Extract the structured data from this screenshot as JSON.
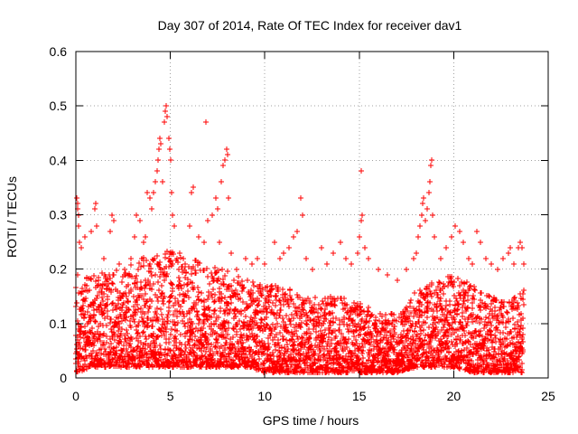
{
  "chart_data": {
    "type": "scatter",
    "title": "Day 307 of 2014, Rate Of TEC Index for receiver dav1",
    "xlabel": "GPS time / hours",
    "ylabel": "ROTI / TECUs",
    "xlim": [
      0,
      25
    ],
    "ylim": [
      0,
      0.6
    ],
    "xticks": [
      0,
      5,
      10,
      15,
      20,
      25
    ],
    "xtick_labels": [
      "0",
      "5",
      "10",
      "15",
      "20",
      "25"
    ],
    "yticks": [
      0,
      0.1,
      0.2,
      0.3,
      0.4,
      0.5,
      0.6
    ],
    "ytick_labels": [
      "0",
      "0.1",
      "0.2",
      "0.3",
      "0.4",
      "0.5",
      "0.6"
    ],
    "grid": true,
    "marker": "+",
    "color": "#ff0000",
    "series": [
      {
        "name": "ROTI",
        "points": [
          [
            0.05,
            0.33
          ],
          [
            0.08,
            0.32
          ],
          [
            0.1,
            0.31
          ],
          [
            0.12,
            0.3
          ],
          [
            0.15,
            0.28
          ],
          [
            0.2,
            0.25
          ],
          [
            0.3,
            0.24
          ],
          [
            0.5,
            0.26
          ],
          [
            0.8,
            0.27
          ],
          [
            1.0,
            0.31
          ],
          [
            1.05,
            0.32
          ],
          [
            1.1,
            0.28
          ],
          [
            1.5,
            0.22
          ],
          [
            1.8,
            0.27
          ],
          [
            1.9,
            0.3
          ],
          [
            2.0,
            0.29
          ],
          [
            2.3,
            0.21
          ],
          [
            2.6,
            0.2
          ],
          [
            2.9,
            0.22
          ],
          [
            3.1,
            0.26
          ],
          [
            3.2,
            0.3
          ],
          [
            3.4,
            0.29
          ],
          [
            3.6,
            0.25
          ],
          [
            3.7,
            0.26
          ],
          [
            3.8,
            0.34
          ],
          [
            3.9,
            0.33
          ],
          [
            4.0,
            0.31
          ],
          [
            4.1,
            0.34
          ],
          [
            4.2,
            0.36
          ],
          [
            4.3,
            0.38
          ],
          [
            4.35,
            0.4
          ],
          [
            4.4,
            0.42
          ],
          [
            4.45,
            0.44
          ],
          [
            4.5,
            0.43
          ],
          [
            4.6,
            0.36
          ],
          [
            4.7,
            0.47
          ],
          [
            4.75,
            0.49
          ],
          [
            4.8,
            0.5
          ],
          [
            4.85,
            0.48
          ],
          [
            4.9,
            0.44
          ],
          [
            4.95,
            0.42
          ],
          [
            5.0,
            0.4
          ],
          [
            5.05,
            0.34
          ],
          [
            5.1,
            0.3
          ],
          [
            5.2,
            0.28
          ],
          [
            5.5,
            0.23
          ],
          [
            5.8,
            0.21
          ],
          [
            6.0,
            0.28
          ],
          [
            6.1,
            0.34
          ],
          [
            6.2,
            0.35
          ],
          [
            6.5,
            0.26
          ],
          [
            6.8,
            0.25
          ],
          [
            6.9,
            0.47
          ],
          [
            7.0,
            0.29
          ],
          [
            7.2,
            0.3
          ],
          [
            7.4,
            0.33
          ],
          [
            7.5,
            0.31
          ],
          [
            7.6,
            0.25
          ],
          [
            7.7,
            0.36
          ],
          [
            7.8,
            0.39
          ],
          [
            7.9,
            0.4
          ],
          [
            8.0,
            0.42
          ],
          [
            8.05,
            0.41
          ],
          [
            8.1,
            0.33
          ],
          [
            8.2,
            0.23
          ],
          [
            8.5,
            0.2
          ],
          [
            9.0,
            0.22
          ],
          [
            9.3,
            0.21
          ],
          [
            9.6,
            0.22
          ],
          [
            10.0,
            0.21
          ],
          [
            10.5,
            0.25
          ],
          [
            10.8,
            0.22
          ],
          [
            11.0,
            0.23
          ],
          [
            11.3,
            0.24
          ],
          [
            11.5,
            0.26
          ],
          [
            11.7,
            0.27
          ],
          [
            11.9,
            0.33
          ],
          [
            12.0,
            0.3
          ],
          [
            12.2,
            0.22
          ],
          [
            12.5,
            0.2
          ],
          [
            13.0,
            0.24
          ],
          [
            13.3,
            0.21
          ],
          [
            13.6,
            0.23
          ],
          [
            14.0,
            0.25
          ],
          [
            14.3,
            0.22
          ],
          [
            14.6,
            0.21
          ],
          [
            14.9,
            0.23
          ],
          [
            15.0,
            0.26
          ],
          [
            15.1,
            0.29
          ],
          [
            15.15,
            0.3
          ],
          [
            15.1,
            0.38
          ],
          [
            15.3,
            0.24
          ],
          [
            15.5,
            0.22
          ],
          [
            16.0,
            0.2
          ],
          [
            16.5,
            0.19
          ],
          [
            17.0,
            0.18
          ],
          [
            17.5,
            0.2
          ],
          [
            17.9,
            0.22
          ],
          [
            18.0,
            0.23
          ],
          [
            18.1,
            0.26
          ],
          [
            18.2,
            0.28
          ],
          [
            18.3,
            0.3
          ],
          [
            18.35,
            0.32
          ],
          [
            18.4,
            0.33
          ],
          [
            18.5,
            0.29
          ],
          [
            18.6,
            0.31
          ],
          [
            18.7,
            0.34
          ],
          [
            18.75,
            0.36
          ],
          [
            18.8,
            0.39
          ],
          [
            18.85,
            0.4
          ],
          [
            18.9,
            0.3
          ],
          [
            19.0,
            0.26
          ],
          [
            19.3,
            0.22
          ],
          [
            19.6,
            0.24
          ],
          [
            19.9,
            0.26
          ],
          [
            20.1,
            0.28
          ],
          [
            20.3,
            0.27
          ],
          [
            20.5,
            0.25
          ],
          [
            20.8,
            0.22
          ],
          [
            21.0,
            0.21
          ],
          [
            21.2,
            0.27
          ],
          [
            21.4,
            0.25
          ],
          [
            21.7,
            0.22
          ],
          [
            22.0,
            0.21
          ],
          [
            22.3,
            0.2
          ],
          [
            22.6,
            0.22
          ],
          [
            22.9,
            0.23
          ],
          [
            23.0,
            0.24
          ],
          [
            23.2,
            0.21
          ],
          [
            23.4,
            0.24
          ],
          [
            23.5,
            0.25
          ],
          [
            23.6,
            0.24
          ],
          [
            23.7,
            0.21
          ]
        ]
      }
    ],
    "density_envelope": {
      "description": "dense cloud of ROTI samples every ~30 s, lower/upper bound per hour",
      "hours": [
        0,
        1,
        2,
        3,
        4,
        5,
        6,
        7,
        8,
        9,
        10,
        11,
        12,
        13,
        14,
        15,
        16,
        17,
        18,
        19,
        20,
        21,
        22,
        23,
        23.7
      ],
      "low": [
        0.01,
        0.02,
        0.02,
        0.02,
        0.02,
        0.02,
        0.02,
        0.02,
        0.02,
        0.02,
        0.01,
        0.01,
        0.01,
        0.01,
        0.01,
        0.01,
        0.01,
        0.01,
        0.02,
        0.02,
        0.02,
        0.01,
        0.01,
        0.01,
        0.01
      ],
      "high": [
        0.2,
        0.19,
        0.2,
        0.21,
        0.23,
        0.24,
        0.22,
        0.21,
        0.2,
        0.18,
        0.17,
        0.17,
        0.15,
        0.15,
        0.15,
        0.14,
        0.12,
        0.12,
        0.16,
        0.18,
        0.19,
        0.17,
        0.15,
        0.14,
        0.17
      ]
    }
  }
}
